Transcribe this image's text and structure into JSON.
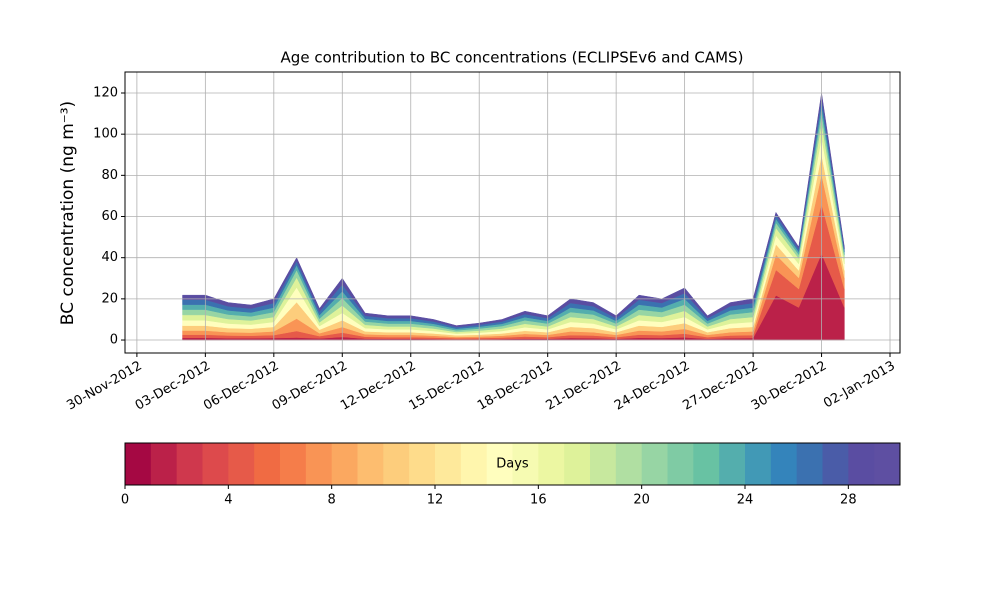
{
  "chart_data": {
    "type": "stacked_area",
    "title": "Age contribution to BC concentrations (ECLIPSEv6 and CAMS)",
    "y_label": "BC concentration (ng m⁻³)",
    "x": [
      "2012-12-02",
      "2012-12-03",
      "2012-12-04",
      "2012-12-05",
      "2012-12-06",
      "2012-12-07",
      "2012-12-08",
      "2012-12-09",
      "2012-12-10",
      "2012-12-11",
      "2012-12-12",
      "2012-12-13",
      "2012-12-14",
      "2012-12-15",
      "2012-12-16",
      "2012-12-17",
      "2012-12-18",
      "2012-12-19",
      "2012-12-20",
      "2012-12-21",
      "2012-12-22",
      "2012-12-23",
      "2012-12-24",
      "2012-12-25",
      "2012-12-26",
      "2012-12-27",
      "2012-12-28",
      "2012-12-29",
      "2012-12-30",
      "2012-12-31"
    ],
    "series": [
      {
        "color": "#bb2149",
        "values": [
          1.1,
          1.1,
          0.9,
          0.9,
          1.0,
          1.2,
          0.8,
          1.5,
          0.7,
          0.6,
          0.6,
          0.5,
          0.4,
          0.4,
          0.5,
          0.7,
          0.6,
          1.0,
          0.9,
          0.6,
          1.1,
          1.0,
          1.3,
          0.6,
          0.9,
          1.0,
          21.7,
          15.8,
          42.0,
          15.8
        ]
      },
      {
        "color": "#e65a49",
        "values": [
          1.5,
          1.5,
          1.3,
          1.2,
          1.4,
          3.2,
          1.1,
          2.1,
          0.9,
          0.8,
          0.8,
          0.7,
          0.5,
          0.6,
          0.7,
          1.0,
          0.8,
          1.4,
          1.3,
          0.8,
          1.5,
          1.4,
          1.8,
          0.8,
          1.3,
          1.4,
          12.4,
          9.0,
          24.0,
          9.0
        ]
      },
      {
        "color": "#f99455",
        "values": [
          2.0,
          2.0,
          1.6,
          1.5,
          1.8,
          6.0,
          1.4,
          2.7,
          1.2,
          1.1,
          1.1,
          0.9,
          0.6,
          0.7,
          0.9,
          1.3,
          1.1,
          1.8,
          1.6,
          1.1,
          2.0,
          1.8,
          2.3,
          1.1,
          1.6,
          1.8,
          7.4,
          5.4,
          14.4,
          5.4
        ]
      },
      {
        "color": "#fdcd7c",
        "values": [
          2.4,
          2.4,
          2.0,
          1.9,
          2.2,
          8.0,
          1.7,
          3.3,
          1.4,
          1.3,
          1.3,
          1.1,
          0.8,
          0.9,
          1.1,
          1.5,
          1.3,
          2.2,
          2.0,
          1.3,
          2.4,
          2.2,
          2.8,
          1.3,
          2.0,
          2.2,
          5.0,
          3.6,
          9.6,
          3.6
        ]
      },
      {
        "color": "#fffebe",
        "values": [
          2.6,
          2.6,
          2.2,
          2.0,
          2.4,
          7.2,
          1.8,
          3.6,
          1.6,
          1.4,
          1.4,
          1.2,
          0.8,
          1.0,
          1.2,
          1.7,
          1.4,
          2.4,
          2.2,
          1.4,
          2.6,
          2.4,
          3.0,
          1.4,
          2.2,
          2.4,
          4.3,
          3.2,
          8.4,
          3.2
        ]
      },
      {
        "color": "#def29a",
        "values": [
          2.6,
          2.6,
          2.2,
          2.0,
          2.4,
          4.8,
          1.8,
          3.6,
          1.6,
          1.4,
          1.4,
          1.2,
          0.8,
          1.0,
          1.2,
          1.7,
          1.4,
          2.4,
          2.2,
          1.4,
          2.6,
          2.4,
          3.0,
          1.4,
          2.2,
          2.4,
          3.7,
          2.7,
          7.2,
          2.7
        ]
      },
      {
        "color": "#97d5a4",
        "values": [
          2.6,
          2.6,
          2.2,
          2.0,
          2.4,
          3.6,
          1.8,
          3.6,
          1.6,
          1.4,
          1.4,
          1.2,
          0.8,
          1.0,
          1.2,
          1.7,
          1.4,
          2.4,
          2.2,
          1.4,
          2.6,
          2.4,
          3.0,
          1.4,
          2.2,
          2.4,
          2.5,
          1.8,
          4.8,
          1.8
        ]
      },
      {
        "color": "#54aead",
        "values": [
          2.4,
          2.4,
          2.0,
          1.9,
          2.2,
          2.4,
          1.7,
          3.3,
          1.4,
          1.3,
          1.3,
          1.1,
          0.8,
          0.9,
          1.1,
          1.5,
          1.3,
          2.2,
          2.0,
          1.3,
          2.4,
          2.2,
          2.8,
          1.3,
          2.0,
          2.2,
          1.9,
          1.4,
          3.6,
          1.4
        ]
      },
      {
        "color": "#3b71b0",
        "values": [
          2.4,
          2.4,
          2.0,
          1.9,
          2.2,
          2.0,
          1.7,
          3.3,
          1.4,
          1.3,
          1.3,
          1.1,
          0.8,
          0.9,
          1.1,
          1.5,
          1.3,
          2.2,
          2.0,
          1.3,
          2.4,
          2.2,
          2.8,
          1.3,
          2.0,
          2.2,
          1.9,
          1.4,
          3.6,
          1.4
        ]
      },
      {
        "color": "#5a4da2",
        "values": [
          2.2,
          2.2,
          1.8,
          1.7,
          2.0,
          1.6,
          1.5,
          3.0,
          1.3,
          1.2,
          1.2,
          1.0,
          0.7,
          0.8,
          1.0,
          1.4,
          1.2,
          2.0,
          1.8,
          1.2,
          2.2,
          2.0,
          2.5,
          1.2,
          1.8,
          2.0,
          1.2,
          0.9,
          2.4,
          0.9
        ]
      }
    ],
    "xlim": [
      "2012-11-29T11:30",
      "2013-01-02T10:30"
    ],
    "xticks": [
      {
        "value": "2012-11-30",
        "label": "30-Nov-2012"
      },
      {
        "value": "2012-12-03",
        "label": "03-Dec-2012"
      },
      {
        "value": "2012-12-06",
        "label": "06-Dec-2012"
      },
      {
        "value": "2012-12-09",
        "label": "09-Dec-2012"
      },
      {
        "value": "2012-12-12",
        "label": "12-Dec-2012"
      },
      {
        "value": "2012-12-15",
        "label": "15-Dec-2012"
      },
      {
        "value": "2012-12-18",
        "label": "18-Dec-2012"
      },
      {
        "value": "2012-12-21",
        "label": "21-Dec-2012"
      },
      {
        "value": "2012-12-24",
        "label": "24-Dec-2012"
      },
      {
        "value": "2012-12-27",
        "label": "27-Dec-2012"
      },
      {
        "value": "2012-12-30",
        "label": "30-Dec-2012"
      },
      {
        "value": "2013-01-02",
        "label": "02-Jan-2013"
      }
    ],
    "ylim": [
      -6.3,
      130.2
    ],
    "yticks": [
      0,
      20,
      40,
      60,
      80,
      100,
      120
    ],
    "grid": true,
    "colorbar": {
      "label": "Days",
      "lim": [
        0,
        30
      ],
      "ticks": [
        0,
        4,
        8,
        12,
        16,
        20,
        24,
        28
      ],
      "colors": [
        "#a50843",
        "#bb2149",
        "#cf384d",
        "#dd4a4c",
        "#e65a49",
        "#f06b43",
        "#f57d4a",
        "#f99455",
        "#fba860",
        "#fdbd6f",
        "#fdcd7c",
        "#fedc8b",
        "#fee99b",
        "#fff6ad",
        "#fffebe",
        "#f6fbb2",
        "#ecf7a2",
        "#def29a",
        "#c7e89e",
        "#b0dfa2",
        "#97d5a4",
        "#7fcba4",
        "#68c2a3",
        "#54aead",
        "#4199b6",
        "#3484bb",
        "#3b71b0",
        "#4a5ca8",
        "#5a4da2",
        "#5e4fa2"
      ]
    }
  }
}
